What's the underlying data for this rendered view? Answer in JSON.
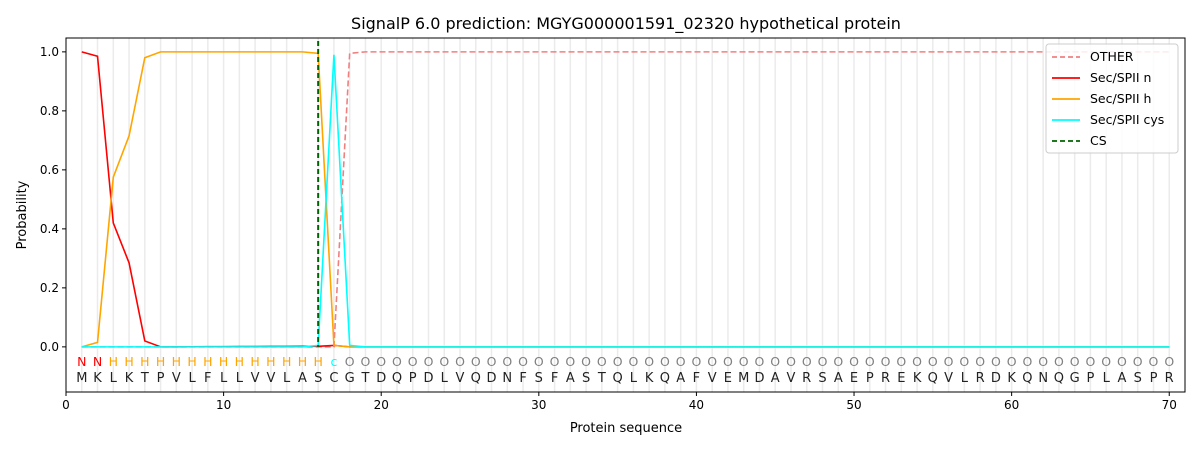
{
  "chart_data": {
    "type": "line",
    "title": "SignalP 6.0 prediction: MGYG000001591_02320 hypothetical protein",
    "xlabel": "Protein sequence",
    "ylabel": "Probability",
    "xlim": [
      0,
      71
    ],
    "ylim": [
      -0.153,
      1.047
    ],
    "xticks": [
      0,
      10,
      20,
      30,
      40,
      50,
      60,
      70
    ],
    "yticks": [
      0.0,
      0.2,
      0.4,
      0.6,
      0.8,
      1.0
    ],
    "ytick_labels": [
      "0.0",
      "0.2",
      "0.4",
      "0.6",
      "0.8",
      "1.0"
    ],
    "grid": "vertical lines at each residue",
    "legend_position": "top-right",
    "sequence": "MKLKTPVLFLLVVLASCGTDQPDLVQDNFSFASTQLKQAFVEMDAVRSAEPREKQVLRDKQNQGPLASPR",
    "labels": "NNHHHHHHHHHHHHHHcOOOOOOOOOOOOOOOOOOOOOOOOOOOOOOOOOOOOOOOOOOOOOOOOOOOOO",
    "label_colors": {
      "N": "#ff0000",
      "H": "#ffa500",
      "c": "#00ffff",
      "O": "#808080"
    },
    "series": [
      {
        "name": "OTHER",
        "color": "#f08080",
        "dash": true,
        "points": {
          "1": 0,
          "17": 0,
          "18": 0.995,
          "19": 1,
          "70": 1
        }
      },
      {
        "name": "Sec/SPII n",
        "color": "#ff0000",
        "dash": false,
        "points": {
          "1": 1,
          "2": 0.985,
          "3": 0.42,
          "4": 0.285,
          "5": 0.02,
          "6": 0,
          "16": 0.002,
          "17": 0.005,
          "18": 0,
          "70": 0
        }
      },
      {
        "name": "Sec/SPII h",
        "color": "#ffa500",
        "dash": false,
        "points": {
          "1": 0,
          "2": 0.015,
          "3": 0.575,
          "4": 0.715,
          "5": 0.98,
          "6": 1,
          "15": 1,
          "16": 0.995,
          "17": 0.005,
          "18": 0,
          "70": 0
        }
      },
      {
        "name": "Sec/SPII cys",
        "color": "#00ffff",
        "dash": false,
        "points": {
          "1": 0,
          "15": 0,
          "16": 0.005,
          "17": 0.99,
          "18": 0.005,
          "19": 0,
          "70": 0
        }
      }
    ],
    "cs": {
      "name": "CS",
      "x": 16,
      "color": "#006400"
    }
  }
}
